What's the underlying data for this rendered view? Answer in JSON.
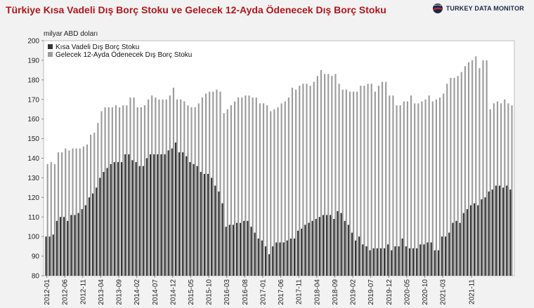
{
  "header": {
    "title": "Türkiye Kısa Vadeli Dış Borç Stoku ve Gelecek 12-Ayda Ödenecek Dış Borç Stoku",
    "logo_text": "TURKEY DATA MONITOR",
    "logo_icon": "globe-logo-icon"
  },
  "chart_data": {
    "type": "bar",
    "ylabel": "milyar ABD doları",
    "ylim": [
      80,
      200
    ],
    "yticks": [
      80,
      90,
      100,
      110,
      120,
      130,
      140,
      150,
      160,
      170,
      180,
      190,
      200
    ],
    "grid": false,
    "legend_position": "top-left",
    "x_tick_labels": [
      "2012-01",
      "2012-06",
      "2012-11",
      "2013-04",
      "2013-09",
      "2014-02",
      "2014-07",
      "2014-12",
      "2015-05",
      "2015-10",
      "2016-03",
      "2016-08",
      "2017-01",
      "2017-06",
      "2017-11",
      "2018-04",
      "2018-09",
      "2019-02",
      "2019-07",
      "2019-12",
      "2020-05",
      "2020-10",
      "2021-03",
      "2021-11"
    ],
    "x_start": "2012-01",
    "x_end": "2021-11",
    "series": [
      {
        "name": "Kısa Vadeli Dış Borç Stoku",
        "color": "#333333",
        "values": [
          100,
          100,
          101,
          108,
          110,
          110,
          108,
          111,
          111,
          112,
          114,
          116,
          120,
          122,
          125,
          130,
          133,
          135,
          137,
          138,
          138,
          138,
          142,
          142,
          139,
          138,
          136,
          136,
          140,
          142,
          142,
          142,
          142,
          142,
          144,
          145,
          148,
          143,
          143,
          141,
          138,
          137,
          136,
          133,
          132,
          132,
          130,
          126,
          123,
          117,
          105,
          106,
          106,
          107,
          107,
          108,
          108,
          105,
          102,
          99,
          98,
          95,
          91,
          95,
          97,
          97,
          97,
          98,
          99,
          99,
          103,
          104,
          106,
          107,
          108,
          109,
          110,
          111,
          111,
          111,
          109,
          113,
          112,
          108,
          106,
          102,
          98,
          100,
          96,
          95,
          93,
          94,
          94,
          94,
          94,
          96,
          93,
          95,
          95,
          99,
          95,
          94,
          94,
          94,
          96,
          96,
          97,
          97,
          93,
          93,
          100,
          100,
          102,
          107,
          108,
          107,
          112,
          114,
          116,
          117,
          116,
          119,
          120,
          123,
          124,
          126,
          126,
          125,
          126,
          124
        ]
      },
      {
        "name": "Gelecek 12-Ayda Ödenecek Dış Borç Stoku",
        "color": "#9c9c9c",
        "values": [
          137,
          138,
          137,
          143,
          143,
          145,
          144,
          145,
          145,
          145,
          146,
          147,
          152,
          153,
          158,
          164,
          166,
          166,
          166,
          167,
          166,
          167,
          167,
          171,
          171,
          166,
          166,
          167,
          170,
          172,
          171,
          170,
          170,
          170,
          172,
          176,
          170,
          170,
          169,
          167,
          166,
          166,
          168,
          171,
          173,
          174,
          174,
          175,
          174,
          163,
          165,
          167,
          169,
          171,
          171,
          172,
          172,
          171,
          171,
          168,
          168,
          167,
          164,
          165,
          166,
          168,
          169,
          171,
          176,
          175,
          177,
          178,
          178,
          177,
          179,
          182,
          185,
          183,
          183,
          182,
          183,
          178,
          175,
          175,
          174,
          174,
          174,
          177,
          177,
          178,
          178,
          174,
          177,
          179,
          179,
          172,
          172,
          167,
          167,
          169,
          169,
          172,
          168,
          168,
          169,
          170,
          172,
          169,
          170,
          171,
          173,
          178,
          181,
          181,
          182,
          184,
          187,
          189,
          190,
          192,
          186,
          190,
          190,
          165,
          168,
          169,
          168,
          170,
          168,
          167
        ]
      }
    ]
  }
}
